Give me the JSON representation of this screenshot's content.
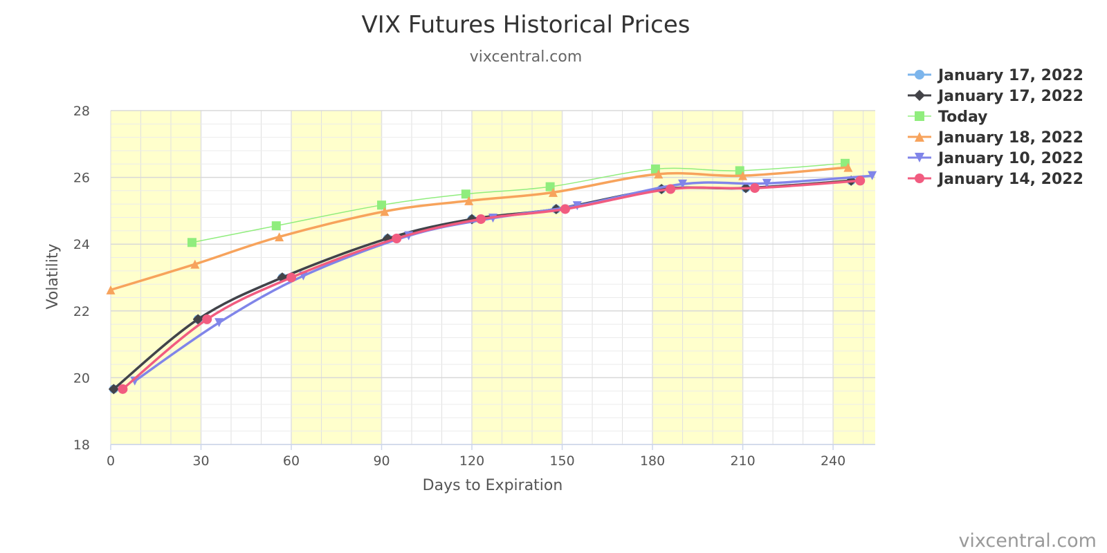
{
  "chart_data": {
    "type": "line",
    "title": "VIX Futures Historical Prices",
    "subtitle": "vixcentral.com",
    "credit": "vixcentral.com",
    "xlabel": "Days to Expiration",
    "ylabel": "Volatility",
    "xlim": [
      0,
      254
    ],
    "ylim": [
      18,
      28
    ],
    "x_ticks": [
      0,
      30,
      60,
      90,
      120,
      150,
      180,
      210,
      240
    ],
    "y_ticks": [
      18,
      20,
      22,
      24,
      26,
      28
    ],
    "x_band_ranges": [
      [
        0,
        30
      ],
      [
        60,
        90
      ],
      [
        120,
        150
      ],
      [
        180,
        210
      ],
      [
        240,
        254
      ]
    ],
    "band_color": "#ffffcc",
    "grid": true,
    "legend_position": "top-right",
    "series": [
      {
        "name": "January 17, 2022",
        "color": "#7cb5ec",
        "marker": "circle",
        "x": [
          1,
          29,
          57,
          92,
          120,
          148,
          183,
          211,
          246
        ],
        "y": [
          19.66,
          21.75,
          23.0,
          24.17,
          24.75,
          25.05,
          25.65,
          25.68,
          25.9
        ]
      },
      {
        "name": "January 17, 2022",
        "color": "#434348",
        "marker": "diamond",
        "x": [
          1,
          29,
          57,
          92,
          120,
          148,
          183,
          211,
          246
        ],
        "y": [
          19.66,
          21.75,
          23.0,
          24.17,
          24.75,
          25.05,
          25.65,
          25.68,
          25.9
        ]
      },
      {
        "name": "Today",
        "color": "#90ed7d",
        "marker": "square",
        "x": [
          27,
          55,
          90,
          118,
          146,
          181,
          209,
          244
        ],
        "y": [
          24.05,
          24.55,
          25.17,
          25.5,
          25.72,
          26.25,
          26.2,
          26.42
        ]
      },
      {
        "name": "January 18, 2022",
        "color": "#f7a35c",
        "marker": "triangle",
        "x": [
          0,
          28,
          56,
          91,
          119,
          147,
          182,
          210,
          245
        ],
        "y": [
          22.63,
          23.4,
          24.22,
          24.98,
          25.3,
          25.55,
          26.1,
          26.05,
          26.3
        ]
      },
      {
        "name": "January 10, 2022",
        "color": "#8085e9",
        "marker": "triangle-down",
        "x": [
          8,
          36,
          64,
          99,
          127,
          155,
          190,
          218,
          253
        ],
        "y": [
          19.9,
          21.65,
          23.05,
          24.25,
          24.78,
          25.15,
          25.8,
          25.82,
          26.05
        ]
      },
      {
        "name": "January 14, 2022",
        "color": "#f15c80",
        "marker": "circle",
        "x": [
          4,
          32,
          60,
          95,
          123,
          151,
          186,
          214,
          249
        ],
        "y": [
          19.66,
          21.75,
          23.0,
          24.17,
          24.75,
          25.05,
          25.65,
          25.68,
          25.9
        ]
      }
    ]
  }
}
